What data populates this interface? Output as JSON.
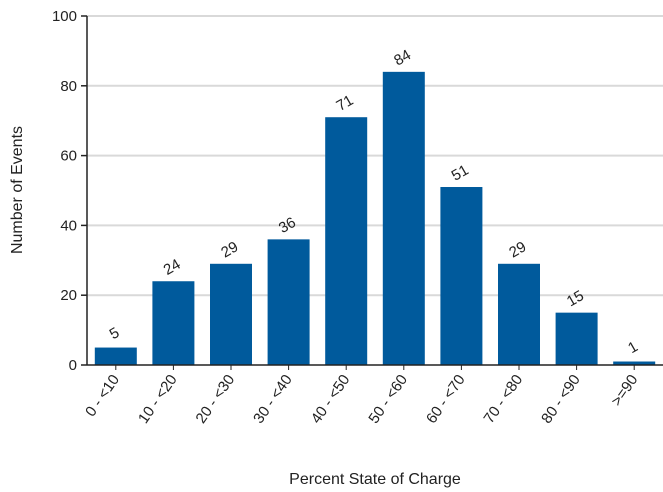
{
  "chart_data": {
    "type": "bar",
    "categories": [
      "0 - <10",
      "10 - <20",
      "20 - <30",
      "30 - <40",
      "40 - <50",
      "50 - <60",
      "60 - <70",
      "70 - <80",
      "80 - <90",
      ">=90"
    ],
    "values": [
      5,
      24,
      29,
      36,
      71,
      84,
      51,
      29,
      15,
      1
    ],
    "data_labels": [
      "5",
      "24",
      "29",
      "36",
      "71",
      "84",
      "51",
      "29",
      "15",
      "1"
    ],
    "xlabel": "Percent State of Charge",
    "ylabel": "Number of Events",
    "ylim": [
      0,
      100
    ],
    "yticks": [
      0,
      20,
      40,
      60,
      80,
      100
    ],
    "grid": "horizontal",
    "bar_color": "#005a9c",
    "grid_color": "#d9d9d9"
  }
}
